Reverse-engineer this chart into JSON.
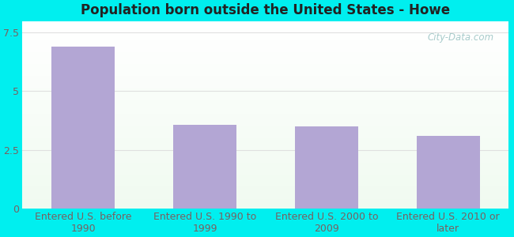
{
  "title": "Population born outside the United States - Howe",
  "categories": [
    "Entered U.S. before\n1990",
    "Entered U.S. 1990 to\n1999",
    "Entered U.S. 2000 to\n2009",
    "Entered U.S. 2010 or\nlater"
  ],
  "values": [
    6.9,
    3.55,
    3.5,
    3.1
  ],
  "bar_color": "#b3a6d4",
  "ylim": [
    0,
    8.0
  ],
  "yticks": [
    0,
    2.5,
    5,
    7.5
  ],
  "background_color": "#00efef",
  "grid_color": "#dddddd",
  "title_fontsize": 12,
  "tick_fontsize": 9,
  "watermark_text": "City-Data.com",
  "watermark_color": "#a8cbcb",
  "label_color": "#7a6060"
}
